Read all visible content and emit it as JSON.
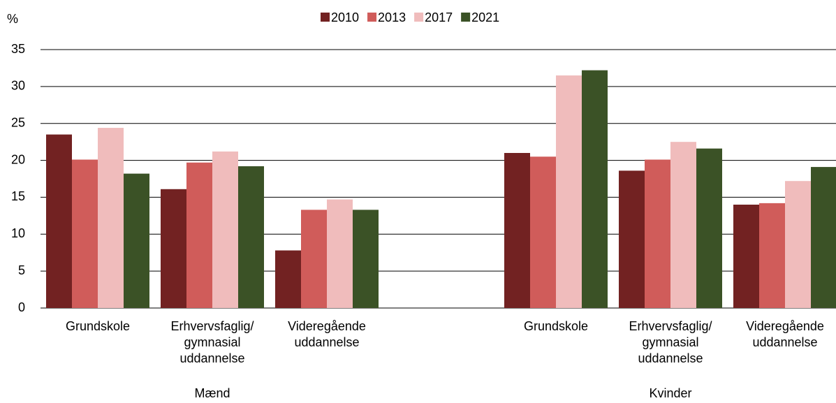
{
  "chart_data": {
    "type": "bar",
    "ylabel": "%",
    "categories": [
      "Grundskole",
      "Erhvervsfaglig/ gymnasial uddannelse",
      "Videregående uddannelse",
      null,
      "Grundskole",
      "Erhvervsfaglig/ gymnasial uddannelse",
      "Videregående uddannelse"
    ],
    "groups": [
      "Mænd",
      "Kvinder"
    ],
    "series": [
      {
        "name": "2010",
        "color": "#722222",
        "values": [
          23.5,
          16.1,
          7.8,
          null,
          21.0,
          18.6,
          14.0
        ]
      },
      {
        "name": "2013",
        "color": "#d05c5a",
        "values": [
          20.1,
          19.7,
          13.3,
          null,
          20.5,
          20.1,
          14.2
        ]
      },
      {
        "name": "2017",
        "color": "#f0bcbc",
        "values": [
          24.4,
          21.2,
          14.7,
          null,
          31.5,
          22.5,
          17.2
        ]
      },
      {
        "name": "2021",
        "color": "#3b5226",
        "values": [
          18.2,
          19.2,
          13.3,
          null,
          32.2,
          21.6,
          19.1
        ]
      }
    ],
    "ylim": [
      0,
      35
    ],
    "yticks": [
      0,
      5,
      10,
      15,
      20,
      25,
      30,
      35
    ],
    "grid": true,
    "legend": "top"
  }
}
